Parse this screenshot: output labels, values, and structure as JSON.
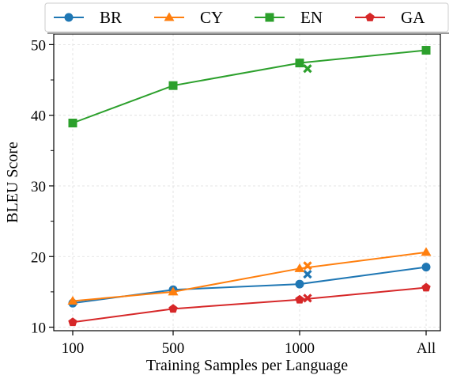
{
  "chart_data": {
    "type": "line",
    "title": "",
    "xlabel": "Training Samples per Language",
    "ylabel": "BLEU Score",
    "categories": [
      "100",
      "500",
      "1000",
      "All"
    ],
    "ylim": [
      9.5,
      51.5
    ],
    "yticks": [
      10,
      20,
      30,
      40,
      50
    ],
    "grid": true,
    "legend_position": "top",
    "series": [
      {
        "name": "BR",
        "color": "#1f77b4",
        "marker": "circle",
        "values": [
          13.4,
          15.3,
          16.1,
          18.5
        ],
        "extra_point": {
          "after": "1000",
          "y": 17.5
        }
      },
      {
        "name": "CY",
        "color": "#ff7f0e",
        "marker": "triangle",
        "values": [
          13.7,
          15.0,
          18.3,
          20.6
        ],
        "extra_point": {
          "after": "1000",
          "y": 18.7
        }
      },
      {
        "name": "EN",
        "color": "#2ca02c",
        "marker": "square",
        "values": [
          38.9,
          44.2,
          47.4,
          49.2
        ],
        "extra_point": {
          "after": "1000",
          "y": 46.6
        }
      },
      {
        "name": "GA",
        "color": "#d62728",
        "marker": "pentagon",
        "values": [
          10.7,
          12.6,
          13.9,
          15.6
        ],
        "extra_point": {
          "after": "1000",
          "y": 14.1
        }
      }
    ]
  }
}
